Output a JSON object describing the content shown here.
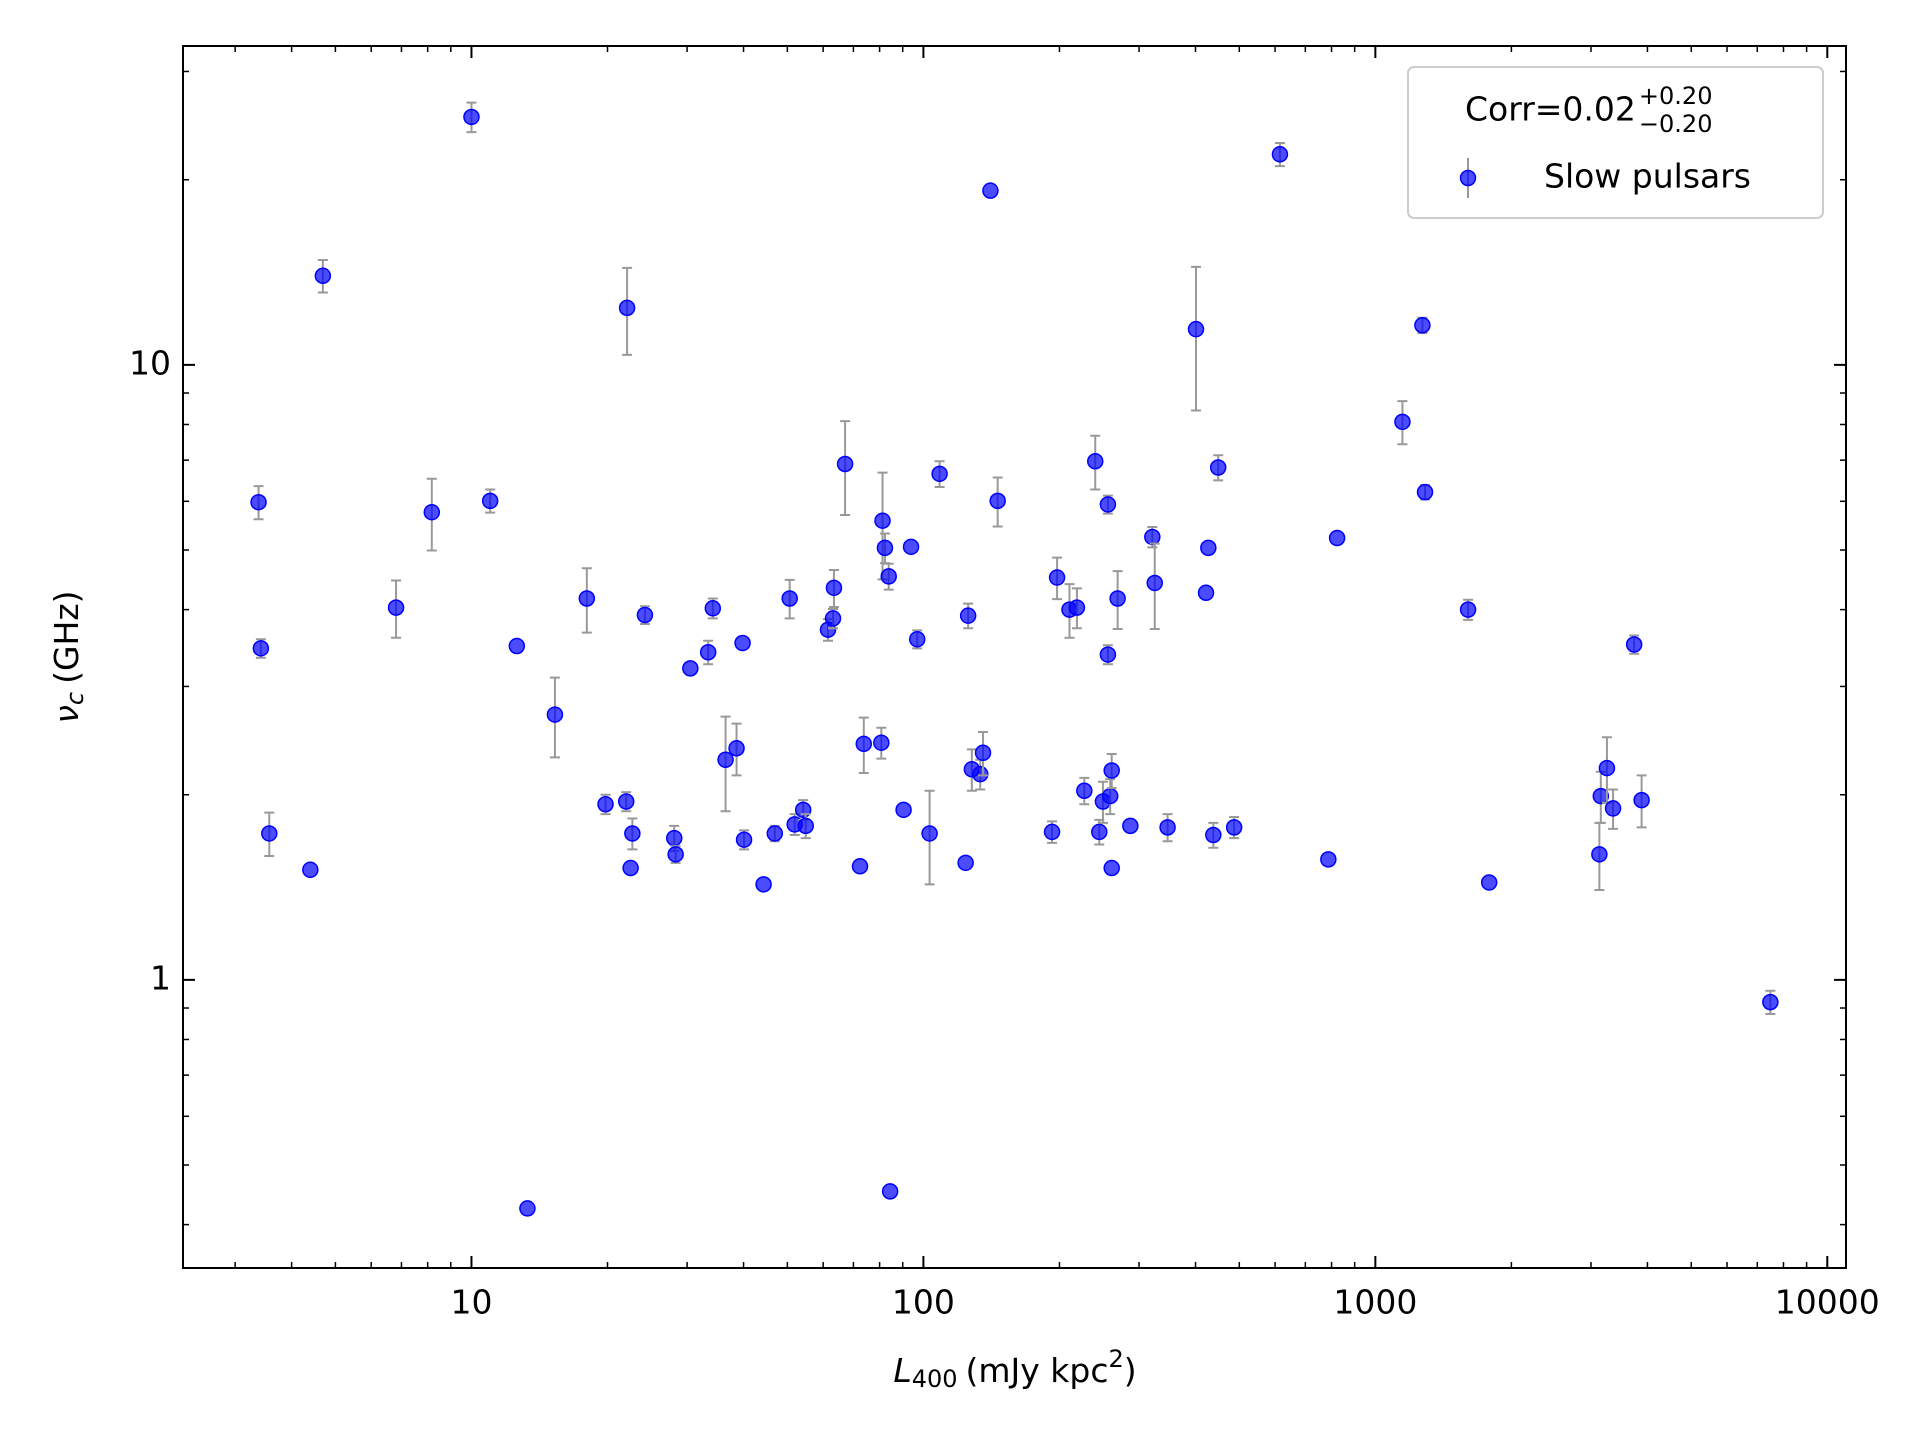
{
  "chart_data": {
    "type": "scatter",
    "xlabel": {
      "symbol": "L",
      "sub": "400",
      "unit": "(mJy kpc",
      "sup": "2",
      "close": ")"
    },
    "ylabel": {
      "symbol": "ν",
      "sub": "c",
      "unit": "(GHz)"
    },
    "xscale": "log",
    "yscale": "log",
    "xlim": [
      2.3,
      11000
    ],
    "ylim": [
      0.34,
      33
    ],
    "xticks": [
      10,
      100,
      1000,
      10000
    ],
    "yticks": [
      1,
      10
    ],
    "xminorticks": [
      3,
      4,
      5,
      6,
      7,
      8,
      9,
      20,
      30,
      40,
      50,
      60,
      70,
      80,
      90,
      200,
      300,
      400,
      500,
      600,
      700,
      800,
      900,
      2000,
      3000,
      4000,
      5000,
      6000,
      7000,
      8000,
      9000
    ],
    "yminorticks": [
      0.4,
      0.5,
      0.6,
      0.7,
      0.8,
      0.9,
      2,
      3,
      4,
      5,
      6,
      7,
      8,
      9,
      20,
      30
    ],
    "legend": "upper right",
    "legend_title": {
      "text": "Corr=0.02",
      "sup": "+0.20",
      "sub": "−0.20"
    },
    "x": [
      3.38,
      3.42,
      3.57,
      4.4,
      4.69,
      6.81,
      8.17,
      10.0,
      11.0,
      12.6,
      13.3,
      15.3,
      18.0,
      19.8,
      22.0,
      22.1,
      22.7,
      22.5,
      24.2,
      28.1,
      28.3,
      30.5,
      33.4,
      34.2,
      36.5,
      38.6,
      39.8,
      40.1,
      44.3,
      46.9,
      50.6,
      51.9,
      54.2,
      54.9,
      61.5,
      63.1,
      63.4,
      67.1,
      72.4,
      73.8,
      80.7,
      81.2,
      82.2,
      83.8,
      84.4,
      90.4,
      93.9,
      96.9,
      103.2,
      108.6,
      124,
      125.6,
      128,
      133.6,
      135.5,
      140.7,
      146,
      192.6,
      197.6,
      210.5,
      218.6,
      227,
      240,
      245,
      249.6,
      256,
      256,
      259,
      261,
      261,
      269,
      287,
      321,
      325,
      347,
      401,
      422,
      427,
      438,
      449,
      487,
      615,
      787,
      823,
      1148,
      1271,
      1288,
      1604,
      1786,
      3131,
      3154,
      3254,
      3357,
      3738,
      3883,
      7482
    ],
    "series": [
      {
        "name": "Slow pulsars",
        "color": "#0000ff",
        "error_color": "#999999",
        "values": [
          5.98,
          3.46,
          1.73,
          1.51,
          13.96,
          4.03,
          5.76,
          25.3,
          6.01,
          3.49,
          0.425,
          2.7,
          4.17,
          1.93,
          1.95,
          12.38,
          1.73,
          1.52,
          3.92,
          1.7,
          1.6,
          3.21,
          3.41,
          4.02,
          2.28,
          2.38,
          3.53,
          1.69,
          1.43,
          1.73,
          4.17,
          1.79,
          1.89,
          1.78,
          3.71,
          3.87,
          4.34,
          6.9,
          1.53,
          2.42,
          2.43,
          5.58,
          5.04,
          4.53,
          0.453,
          1.89,
          5.06,
          3.58,
          1.73,
          6.65,
          1.55,
          3.91,
          2.2,
          2.16,
          2.34,
          19.2,
          6.01,
          1.74,
          4.51,
          4.0,
          4.03,
          2.03,
          6.97,
          1.74,
          1.95,
          5.93,
          3.38,
          1.99,
          1.52,
          2.19,
          4.17,
          1.78,
          5.25,
          4.42,
          1.77,
          11.43,
          4.26,
          5.04,
          1.72,
          6.81,
          1.77,
          22.0,
          1.57,
          5.23,
          8.08,
          11.6,
          6.21,
          4.0,
          1.44,
          1.6,
          1.99,
          2.21,
          1.9,
          3.51,
          1.96,
          0.92
        ],
        "errors": [
          0.37,
          0.12,
          0.14,
          0,
          0.85,
          0.43,
          0.77,
          1.4,
          0.26,
          0,
          0,
          0.4,
          0.5,
          0.07,
          0.07,
          2.0,
          0.1,
          0,
          0.13,
          0.08,
          0.05,
          0,
          0.15,
          0.15,
          0.4,
          0.23,
          0,
          0.06,
          0,
          0.05,
          0.3,
          0.07,
          0.07,
          0.08,
          0.15,
          0.14,
          0.3,
          1.2,
          0,
          0.25,
          0.14,
          1.1,
          0.28,
          0.22,
          0,
          0,
          0,
          0.12,
          0.3,
          0.32,
          0,
          0.18,
          0.17,
          0.12,
          0.19,
          0,
          0.55,
          0.07,
          0.35,
          0.4,
          0.3,
          0.1,
          0.7,
          0.08,
          0.15,
          0.2,
          0.12,
          0.13,
          0,
          0.14,
          0.45,
          0,
          0.2,
          0.7,
          0.09,
          3.0,
          0,
          0,
          0.08,
          0.32,
          0.07,
          0.95,
          0,
          0,
          0.65,
          0.33,
          0.17,
          0.15,
          0,
          0.2,
          0.19,
          0.27,
          0.14,
          0.12,
          0.19,
          0.04
        ]
      }
    ]
  }
}
